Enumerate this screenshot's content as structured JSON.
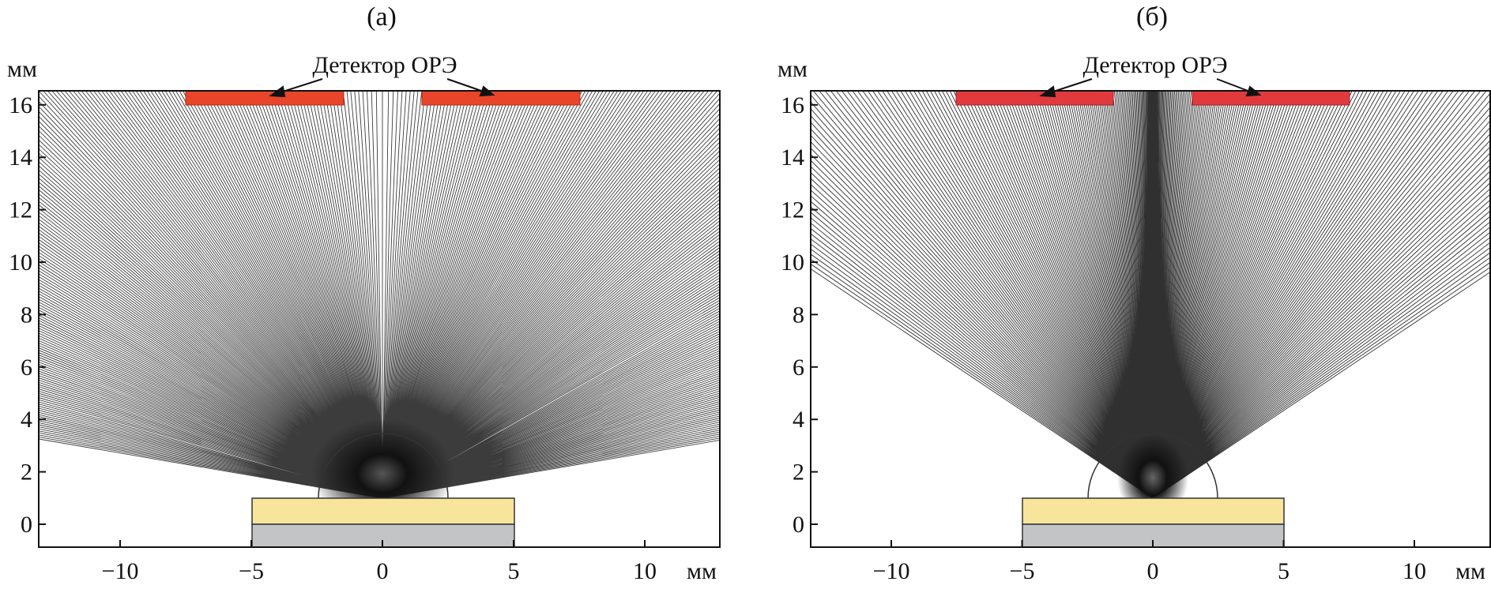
{
  "panels": [
    {
      "id": "a",
      "label": "(а)",
      "y_unit": "мм",
      "x_unit": "мм",
      "detector_label": "Детектор ОРЭ",
      "x_ticks": [
        "−10",
        "−5",
        "0",
        "5",
        "10"
      ],
      "y_ticks": [
        "0",
        "2",
        "4",
        "6",
        "8",
        "10",
        "12",
        "14",
        "16"
      ]
    },
    {
      "id": "b",
      "label": "(б)",
      "y_unit": "мм",
      "x_unit": "мм",
      "detector_label": "Детектор ОРЭ",
      "x_ticks": [
        "−10",
        "−5",
        "0",
        "5",
        "10"
      ],
      "y_ticks": [
        "0",
        "2",
        "4",
        "6",
        "8",
        "10",
        "12",
        "14",
        "16"
      ]
    }
  ],
  "colors": {
    "detector": "#e8452b",
    "detector_b": "#e03a3f",
    "sample_top": "#f7e59c",
    "sample_base": "#c2c4c6",
    "rays": "#1a1a1a"
  }
}
